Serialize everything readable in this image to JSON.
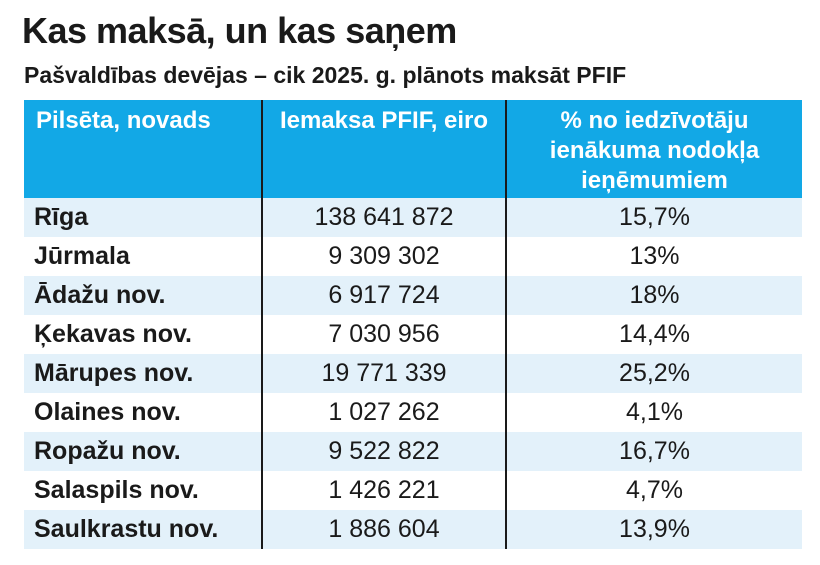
{
  "title": "Kas maksā, un kas saņem",
  "subtitle": "Pašvaldības devējas – cik 2025. g. plānots maksāt PFIF",
  "table": {
    "headers": [
      "Pilsēta, novads",
      "Iemaksa PFIF, eiro",
      "% no iedzīvotāju ienākuma nodokļa ieņēmumiem"
    ],
    "rows": [
      [
        "Rīga",
        "138 641 872",
        "15,7%"
      ],
      [
        "Jūrmala",
        "9 309 302",
        "13%"
      ],
      [
        "Ādažu nov.",
        "6 917 724",
        "18%"
      ],
      [
        "Ķekavas nov.",
        "7 030 956",
        "14,4%"
      ],
      [
        "Mārupes nov.",
        "19 771 339",
        "25,2%"
      ],
      [
        "Olaines nov.",
        "1 027 262",
        "4,1%"
      ],
      [
        "Ropažu nov.",
        "9 522 822",
        "16,7%"
      ],
      [
        "Salaspils nov.",
        "1 426 221",
        "4,7%"
      ],
      [
        "Saulkrastu nov.",
        "1 886 604",
        "13,9%"
      ]
    ]
  },
  "colors": {
    "header_bg": "#12a8e6",
    "row_stripe": "#e3f1fa",
    "text": "#1a1a1a"
  }
}
